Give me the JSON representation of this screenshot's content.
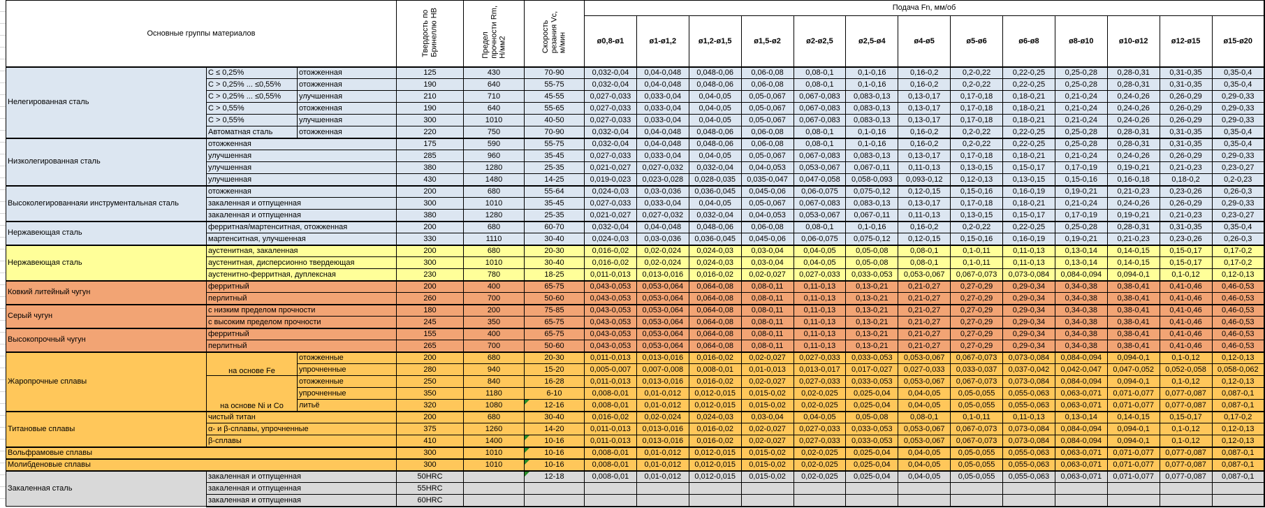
{
  "header": {
    "materials_group_label": "Основные группы материалов",
    "hardness_label": "Твердость по\nБринеллю HB",
    "strength_label": "Предел\nпрочности Rm,\nН/мм2",
    "speed_label": "Скорость\nрезания Vc,\nм/мин",
    "feed_label": "Подача Fn, мм/об",
    "feed_columns": [
      "ø0,8-ø1",
      "ø1-ø1,2",
      "ø1,2-ø1,5",
      "ø1,5-ø2",
      "ø2-ø2,5",
      "ø2,5-ø4",
      "ø4-ø5",
      "ø5-ø6",
      "ø6-ø8",
      "ø8-ø10",
      "ø10-ø12",
      "ø12-ø15",
      "ø15-ø20"
    ]
  },
  "colors": {
    "steel_blue": "#DCE6F1",
    "stainless_yellow": "#FFFF99",
    "cast_iron_salmon": "#F2A474",
    "alloy_gold": "#FFC75A",
    "hardened_gray": "#D9D9D9",
    "flag_green": "#288C28",
    "border_black": "#000000"
  },
  "feed_patterns": {
    "A": [
      "0,032-0,04",
      "0,04-0,048",
      "0,048-0,06",
      "0,06-0,08",
      "0,08-0,1",
      "0,1-0,16",
      "0,16-0,2",
      "0,2-0,22",
      "0,22-0,25",
      "0,25-0,28",
      "0,28-0,31",
      "0,31-0,35",
      "0,35-0,4"
    ],
    "B": [
      "0,027-0,033",
      "0,033-0,04",
      "0,04-0,05",
      "0,05-0,067",
      "0,067-0,083",
      "0,083-0,13",
      "0,13-0,17",
      "0,17-0,18",
      "0,18-0,21",
      "0,21-0,24",
      "0,24-0,26",
      "0,26-0,29",
      "0,29-0,33"
    ],
    "C": [
      "0,021-0,027",
      "0,027-0,032",
      "0,032-0,04",
      "0,04-0,053",
      "0,053-0,067",
      "0,067-0,11",
      "0,11-0,13",
      "0,13-0,15",
      "0,15-0,17",
      "0,17-0,19",
      "0,19-0,21",
      "0,21-0,23",
      "0,23-0,27"
    ],
    "D": [
      "0,019-0,023",
      "0,023-0,028",
      "0,028-0,035",
      "0,035-0,047",
      "0,047-0,058",
      "0,058-0,093",
      "0,093-0,12",
      "0,12-0,13",
      "0,13-0,15",
      "0,15-0,16",
      "0,16-0,18",
      "0,18-0,2",
      "0,2-0,23"
    ],
    "E": [
      "0,024-0,03",
      "0,03-0,036",
      "0,036-0,045",
      "0,045-0,06",
      "0,06-0,075",
      "0,075-0,12",
      "0,12-0,15",
      "0,15-0,16",
      "0,16-0,19",
      "0,19-0,21",
      "0,21-0,23",
      "0,23-0,26",
      "0,26-0,3"
    ],
    "F": [
      "0,016-0,02",
      "0,02-0,024",
      "0,024-0,03",
      "0,03-0,04",
      "0,04-0,05",
      "0,05-0,08",
      "0,08-0,1",
      "0,1-0,11",
      "0,11-0,13",
      "0,13-0,14",
      "0,14-0,15",
      "0,15-0,17",
      "0,17-0,2"
    ],
    "G": [
      "0,011-0,013",
      "0,013-0,016",
      "0,016-0,02",
      "0,02-0,027",
      "0,027-0,033",
      "0,033-0,053",
      "0,053-0,067",
      "0,067-0,073",
      "0,073-0,084",
      "0,084-0,094",
      "0,094-0,1",
      "0,1-0,12",
      "0,12-0,13"
    ],
    "H": [
      "0,043-0,053",
      "0,053-0,064",
      "0,064-0,08",
      "0,08-0,11",
      "0,11-0,13",
      "0,13-0,21",
      "0,21-0,27",
      "0,27-0,29",
      "0,29-0,34",
      "0,34-0,38",
      "0,38-0,41",
      "0,41-0,46",
      "0,46-0,53"
    ],
    "I": [
      "0,005-0,007",
      "0,007-0,008",
      "0,008-0,01",
      "0,01-0,013",
      "0,013-0,017",
      "0,017-0,027",
      "0,027-0,033",
      "0,033-0,037",
      "0,037-0,042",
      "0,042-0,047",
      "0,047-0,052",
      "0,052-0,058",
      "0,058-0,062"
    ],
    "J": [
      "0,008-0,01",
      "0,01-0,012",
      "0,012-0,015",
      "0,015-0,02",
      "0,02-0,025",
      "0,025-0,04",
      "0,04-0,05",
      "0,05-0,055",
      "0,055-0,063",
      "0,063-0,071",
      "0,071-0,077",
      "0,077-0,087",
      "0,087-0,1"
    ]
  },
  "table": {
    "groups": [
      {
        "name": "Нелегированная сталь",
        "scheme": "blue",
        "rows": [
          {
            "label1": {
              "text": "C ≤ 0,25%"
            },
            "label2": {
              "text": "отожженная"
            },
            "hb": "125",
            "rm": "430",
            "vc": "70-90",
            "feeds": "A"
          },
          {
            "label1": {
              "text": "C > 0,25% ... ≤0,55%"
            },
            "label2": {
              "text": "отожженная"
            },
            "hb": "190",
            "rm": "640",
            "vc": "55-75",
            "feeds": "A"
          },
          {
            "label1": {
              "text": "C > 0,25% ... ≤0,55%"
            },
            "label2": {
              "text": "улучшенная"
            },
            "hb": "210",
            "rm": "710",
            "vc": "45-55",
            "feeds": "B"
          },
          {
            "label1": {
              "text": "C > 0,55%"
            },
            "label2": {
              "text": "отожженная"
            },
            "hb": "190",
            "rm": "640",
            "vc": "55-65",
            "feeds": "B"
          },
          {
            "label1": {
              "text": "C > 0,55%"
            },
            "label2": {
              "text": "улучшенная"
            },
            "hb": "300",
            "rm": "1010",
            "vc": "40-50",
            "feeds": "B"
          },
          {
            "label1": {
              "text": "Автоматная сталь"
            },
            "label2": {
              "text": "отожженная"
            },
            "hb": "220",
            "rm": "750",
            "vc": "70-90",
            "feeds": "A"
          }
        ]
      },
      {
        "name": "Низколегированная сталь",
        "scheme": "blue",
        "rows": [
          {
            "label2": {
              "text": "отожженная",
              "colspan": 2
            },
            "hb": "175",
            "rm": "590",
            "vc": "55-75",
            "feeds": "A"
          },
          {
            "label2": {
              "text": "улучшенная",
              "colspan": 2
            },
            "hb": "285",
            "rm": "960",
            "vc": "35-45",
            "feeds": "B"
          },
          {
            "label2": {
              "text": "улучшенная",
              "colspan": 2
            },
            "hb": "380",
            "rm": "1280",
            "vc": "25-35",
            "feeds": "C"
          },
          {
            "label2": {
              "text": "улучшенная",
              "colspan": 2
            },
            "hb": "430",
            "rm": "1480",
            "vc": "14-25",
            "feeds": "D"
          }
        ]
      },
      {
        "name": "Высоколегированнаяи инструментальная сталь",
        "scheme": "blue",
        "rows": [
          {
            "label2": {
              "text": "отожженная",
              "colspan": 2
            },
            "hb": "200",
            "rm": "680",
            "vc": "55-64",
            "feeds": "E"
          },
          {
            "label2": {
              "text": "закаленная и отпущенная",
              "colspan": 2
            },
            "hb": "300",
            "rm": "1010",
            "vc": "35-45",
            "feeds": "B"
          },
          {
            "label2": {
              "text": "закаленная и отпущенная",
              "colspan": 2
            },
            "hb": "380",
            "rm": "1280",
            "vc": "25-35",
            "feeds": "C"
          }
        ]
      },
      {
        "name": "Нержавеющая сталь",
        "scheme": "blue",
        "rows": [
          {
            "label2": {
              "text": "ферритная/мартенситная, отожженная",
              "colspan": 2
            },
            "hb": "200",
            "rm": "680",
            "vc": "60-70",
            "feeds": "A"
          },
          {
            "label2": {
              "text": "мартенситная, улучшенная",
              "colspan": 2
            },
            "hb": "330",
            "rm": "1110",
            "vc": "30-40",
            "feeds": "E"
          }
        ]
      },
      {
        "name": "Нержавеющая сталь",
        "scheme": "yellow",
        "rows": [
          {
            "label2": {
              "text": "аустенитная, закаленная",
              "colspan": 2
            },
            "hb": "200",
            "rm": "680",
            "vc": "20-30",
            "feeds": "F"
          },
          {
            "label2": {
              "text": "аустенитная, дисперсионно твердеющая",
              "colspan": 2
            },
            "hb": "300",
            "rm": "1010",
            "vc": "30-40",
            "feeds": "F"
          },
          {
            "label2": {
              "text": "аустенитно-ферритная, дуплексная",
              "colspan": 2
            },
            "hb": "230",
            "rm": "780",
            "vc": "18-25",
            "feeds": "G"
          }
        ]
      },
      {
        "name": "Ковкий литейный чугун",
        "scheme": "salmon",
        "rows": [
          {
            "label2": {
              "text": "ферритный",
              "colspan": 2
            },
            "hb": "200",
            "rm": "400",
            "vc": "65-75",
            "feeds": "H"
          },
          {
            "label2": {
              "text": "перлитный",
              "colspan": 2
            },
            "hb": "260",
            "rm": "700",
            "vc": "50-60",
            "feeds": "H"
          }
        ]
      },
      {
        "name": "Серый чугун",
        "scheme": "salmon",
        "rows": [
          {
            "label2": {
              "text": "с низким пределом прочности",
              "colspan": 2
            },
            "hb": "180",
            "rm": "200",
            "vc": "75-85",
            "feeds": "H"
          },
          {
            "label2": {
              "text": "с высоким пределом прочности",
              "colspan": 2
            },
            "hb": "245",
            "rm": "350",
            "vc": "65-75",
            "feeds": "H"
          }
        ]
      },
      {
        "name": "Высокопрочный чугун",
        "scheme": "salmon",
        "rows": [
          {
            "label2": {
              "text": "ферритный",
              "colspan": 2
            },
            "hb": "155",
            "rm": "400",
            "vc": "65-75",
            "feeds": "H"
          },
          {
            "label2": {
              "text": "перлитный",
              "colspan": 2
            },
            "hb": "265",
            "rm": "700",
            "vc": "50-60",
            "feeds": "H"
          }
        ]
      },
      {
        "name": "Жаропрочные сплавы",
        "scheme": "gold",
        "rows": [
          {
            "label1": {
              "text": "на основе Fe",
              "rowspan": 2,
              "center": true
            },
            "label2": {
              "text": "отожженные"
            },
            "hb": "200",
            "rm": "680",
            "vc": "20-30",
            "feeds": "G"
          },
          {
            "label2": {
              "text": "упрочненные"
            },
            "hb": "280",
            "rm": "940",
            "vc": "15-20",
            "feeds": "I"
          },
          {
            "label1": {
              "text": "на основе Ni и Co",
              "rowspan": 3,
              "center": true
            },
            "label2": {
              "text": "отожженные"
            },
            "hb": "250",
            "rm": "840",
            "vc": "16-28",
            "feeds": "G"
          },
          {
            "label2": {
              "text": "упрочненные"
            },
            "hb": "350",
            "rm": "1180",
            "vc": "6-10",
            "feeds": "J"
          },
          {
            "label2": {
              "text": "литьё"
            },
            "hb": "320",
            "rm": "1080",
            "vc": "12-16",
            "vc_flag": true,
            "feeds": "J"
          }
        ]
      },
      {
        "name": "Титановые сплавы",
        "scheme": "gold",
        "rows": [
          {
            "label2": {
              "text": "чистый титан",
              "colspan": 2
            },
            "hb": "200",
            "rm": "680",
            "vc": "30-40",
            "feeds": "F"
          },
          {
            "label2": {
              "text": "α- и β-сплавы, упрочненные",
              "colspan": 2
            },
            "hb": "375",
            "rm": "1260",
            "vc": "14-20",
            "feeds": "G"
          },
          {
            "label2": {
              "text": "β-сплавы",
              "colspan": 2
            },
            "hb": "410",
            "rm": "1400",
            "vc": "10-16",
            "vc_flag": true,
            "feeds": "G"
          }
        ]
      },
      {
        "name": "Вольфрамовые сплавы",
        "scheme": "gold",
        "wide": true,
        "rows": [
          {
            "hb": "300",
            "rm": "1010",
            "vc": "10-16",
            "vc_flag": true,
            "feeds": "J"
          }
        ]
      },
      {
        "name": "Молибденовые сплавы",
        "scheme": "gold",
        "wide": true,
        "rows": [
          {
            "hb": "300",
            "rm": "1010",
            "vc": "10-16",
            "vc_flag": true,
            "feeds": "J"
          }
        ]
      },
      {
        "name": "Закаленная сталь",
        "scheme": "gray",
        "rows": [
          {
            "label2": {
              "text": "закаленная и отпущенная",
              "colspan": 2
            },
            "hb": "50HRC",
            "rm": "",
            "vc": "12-18",
            "vc_flag": true,
            "feeds": "J"
          },
          {
            "label2": {
              "text": "закаленная и отпущенная",
              "colspan": 2
            },
            "hb": "55HRC",
            "rm": "",
            "vc": "",
            "feeds": null
          },
          {
            "label2": {
              "text": "закаленная и отпущенная",
              "colspan": 2
            },
            "hb": "60HRC",
            "rm": "",
            "vc": "",
            "feeds": null
          }
        ]
      }
    ]
  }
}
